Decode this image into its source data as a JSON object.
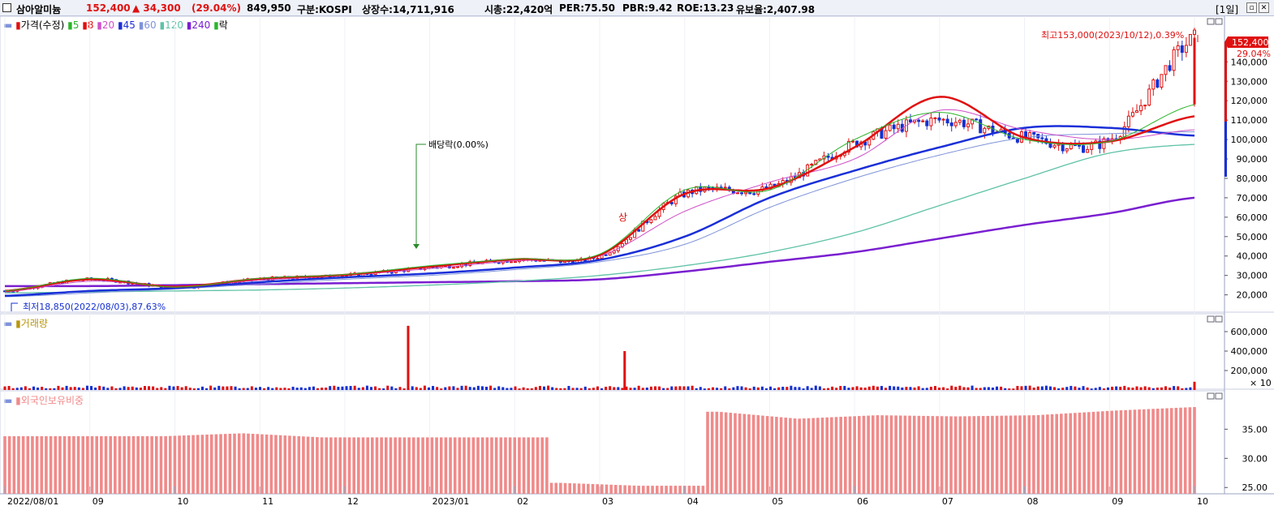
{
  "header": {
    "name": "삼아알미늄",
    "price": "152,400",
    "change": "▲ 34,300",
    "change_pct": "(29.04%)",
    "volume": "849,950",
    "market": "구분:KOSPI",
    "shares": "상장수:14,711,916",
    "mcap": "시총:22,420억",
    "per": "PER:75.50",
    "pbr": "PBR:9.42",
    "roe": "ROE:13.23",
    "float": "유보율:2,407.98",
    "period": "[1일]"
  },
  "colors": {
    "up": "#e01010",
    "down": "#1530d0",
    "ma5": "#2bb52b",
    "ma8": "#e01010",
    "ma20": "#d050c8",
    "ma45": "#1a2fd8",
    "ma60": "#7f93d9",
    "ma120": "#5fc2a6",
    "ma240": "#7a1fd0",
    "foreign": "#f08a8a"
  },
  "legend": {
    "price": {
      "title": "가격(수정)",
      "items": [
        "5",
        "8",
        "20",
        "45",
        "60",
        "120",
        "240"
      ],
      "ex": "락"
    },
    "volume": {
      "title": "거래량"
    },
    "foreign": {
      "title": "외국인보유비중"
    }
  },
  "annotations": {
    "high": "최고153,000(2023/10/12),0.39%",
    "low": "최저18,850(2022/08/03),87.63%",
    "dividend": "배당락(0.00%)",
    "last_price": "152,400",
    "last_pct": "29.04%",
    "mark": "상"
  },
  "chart_data": [
    {
      "type": "candlestick",
      "x": [
        "2022/08/01",
        "2022/09",
        "2022/10",
        "2022/11",
        "2022/12",
        "2023/01",
        "2023/02",
        "2023/03",
        "2023/04",
        "2023/05",
        "2023/06",
        "2023/07",
        "2023/08",
        "2023/09",
        "2023/10"
      ],
      "series": [
        {
          "name": "가격(수정)",
          "values": [
            22000,
            28000,
            24000,
            28000,
            30000,
            34000,
            38000,
            40000,
            72000,
            75000,
            98000,
            110000,
            101000,
            100000,
            152400
          ]
        },
        {
          "name": "5",
          "values": [
            22000,
            28500,
            24000,
            28500,
            30500,
            35000,
            38500,
            41000,
            74000,
            74000,
            100000,
            114000,
            100000,
            99000,
            118000
          ]
        },
        {
          "name": "8",
          "values": [
            22000,
            28000,
            24200,
            28300,
            30300,
            34500,
            38300,
            40500,
            72000,
            75000,
            96000,
            122000,
            101000,
            99000,
            112000
          ]
        },
        {
          "name": "20",
          "values": [
            21500,
            27000,
            24500,
            27500,
            30000,
            33500,
            37500,
            40000,
            63000,
            78000,
            90000,
            115000,
            105000,
            100000,
            105000
          ]
        },
        {
          "name": "45",
          "values": [
            19500,
            22000,
            23500,
            26500,
            29000,
            31000,
            34000,
            38000,
            50000,
            70000,
            84000,
            96000,
            106000,
            106000,
            102000
          ]
        },
        {
          "name": "60",
          "values": [
            19000,
            21000,
            23000,
            25500,
            28000,
            30000,
            33000,
            37000,
            46000,
            65000,
            80000,
            92000,
            101000,
            103000,
            104000
          ]
        },
        {
          "name": "120",
          "values": [
            21000,
            21500,
            22000,
            22500,
            23500,
            25000,
            27000,
            30000,
            35000,
            42000,
            52000,
            66000,
            80000,
            93000,
            97500
          ]
        },
        {
          "name": "240",
          "values": [
            24500,
            24500,
            25000,
            25500,
            26000,
            26500,
            27000,
            28000,
            32000,
            37000,
            42000,
            49000,
            56000,
            62000,
            70000
          ]
        }
      ],
      "high": {
        "value": 153000,
        "date": "2023/10/12",
        "pct": "0.39%"
      },
      "low": {
        "value": 18850,
        "date": "2022/08/03",
        "pct": "87.63%"
      },
      "y_ticks": [
        "20,000",
        "30,000",
        "40,000",
        "50,000",
        "60,000",
        "70,000",
        "80,000",
        "90,000",
        "100,000",
        "110,000",
        "120,000",
        "130,000",
        "140,000",
        "150,000"
      ],
      "ylim": [
        14000,
        156000
      ]
    },
    {
      "type": "bar",
      "name": "거래량",
      "unit": "× 10",
      "y_ticks": [
        "200,000",
        "400,000",
        "600,000"
      ],
      "ylim": [
        0,
        700000
      ],
      "peaks": [
        {
          "x": "2022/12",
          "value": 660000
        },
        {
          "x": "2023/03",
          "value": 400000
        },
        {
          "x": "2023/10",
          "value": 85000
        }
      ]
    },
    {
      "type": "bar",
      "name": "외국인보유비중",
      "y_ticks": [
        "25.00",
        "30.00",
        "35.00"
      ],
      "ylim": [
        24.2,
        39.5
      ],
      "x": [
        "2022/08",
        "2022/09",
        "2022/10",
        "2022/11",
        "2022/12",
        "2023/01",
        "2023/02",
        "2023/02b",
        "2023/03",
        "2023/04",
        "2023/05",
        "2023/06",
        "2023/07",
        "2023/08",
        "2023/09",
        "2023/10"
      ],
      "values": [
        33.8,
        33.8,
        33.8,
        34.3,
        33.6,
        33.6,
        33.6,
        25.8,
        25.3,
        38.0,
        36.8,
        37.4,
        37.2,
        37.4,
        38.2,
        38.8
      ]
    }
  ],
  "x_axis": {
    "labels": [
      "2022/08/01",
      "09",
      "10",
      "11",
      "12",
      "2023/01",
      "02",
      "03",
      "04",
      "05",
      "06",
      "07",
      "08",
      "09",
      "10"
    ]
  }
}
